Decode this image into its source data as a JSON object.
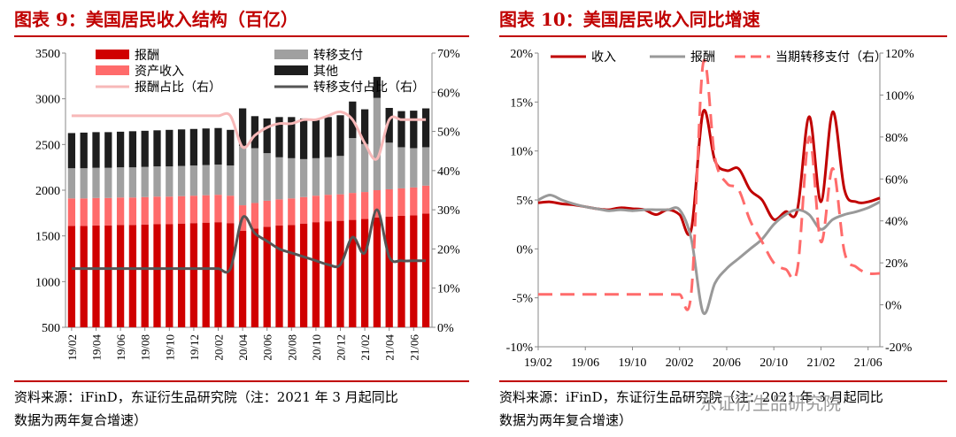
{
  "left": {
    "title": "图表 9：美国居民收入结构（百亿）",
    "note_lines": [
      "资料来源：iFinD，东证衍生品研究院（注：2021 年 3 月起同比",
      "数据为两年复合增速）"
    ],
    "chart_data": {
      "type": "bar",
      "stacked": true,
      "categories": [
        "19/02",
        "19/03",
        "19/04",
        "19/05",
        "19/06",
        "19/07",
        "19/08",
        "19/09",
        "19/10",
        "19/11",
        "19/12",
        "20/01",
        "20/02",
        "20/03",
        "20/04",
        "20/05",
        "20/06",
        "20/07",
        "20/08",
        "20/09",
        "20/10",
        "20/11",
        "20/12",
        "21/01",
        "21/02",
        "21/03",
        "21/04",
        "21/05",
        "21/06",
        "21/07"
      ],
      "xtick_labels": [
        "19/02",
        "19/04",
        "19/06",
        "19/08",
        "19/10",
        "19/12",
        "20/02",
        "20/04",
        "20/06",
        "20/08",
        "20/10",
        "20/12",
        "21/02",
        "21/04",
        "21/06"
      ],
      "ylim": [
        500,
        3500
      ],
      "yticks": [
        "500",
        "1000",
        "1500",
        "2000",
        "2500",
        "3000",
        "3500"
      ],
      "y2lim": [
        0,
        70
      ],
      "y2ticks": [
        "0%",
        "10%",
        "20%",
        "30%",
        "40%",
        "50%",
        "60%",
        "70%"
      ],
      "series": [
        {
          "name": "报酬",
          "color": "#d00000",
          "values": [
            1110,
            1110,
            1115,
            1115,
            1120,
            1120,
            1125,
            1130,
            1130,
            1135,
            1140,
            1145,
            1150,
            1140,
            1055,
            1080,
            1100,
            1115,
            1120,
            1135,
            1150,
            1160,
            1165,
            1175,
            1185,
            1200,
            1210,
            1220,
            1225,
            1245
          ]
        },
        {
          "name": "资产收入",
          "color": "#ff6b6b",
          "values": [
            300,
            300,
            300,
            300,
            300,
            300,
            300,
            300,
            300,
            300,
            300,
            300,
            300,
            300,
            280,
            280,
            285,
            285,
            290,
            290,
            290,
            290,
            290,
            295,
            295,
            300,
            300,
            300,
            305,
            305
          ]
        },
        {
          "name": "转移支付",
          "color": "#a0a0a0",
          "values": [
            330,
            330,
            330,
            330,
            330,
            330,
            330,
            330,
            330,
            330,
            330,
            330,
            330,
            330,
            650,
            600,
            520,
            460,
            440,
            415,
            410,
            410,
            420,
            600,
            525,
            1010,
            510,
            450,
            430,
            420
          ]
        },
        {
          "name": "其他",
          "color": "#1e1e1e",
          "values": [
            385,
            390,
            390,
            390,
            390,
            395,
            395,
            395,
            400,
            400,
            400,
            400,
            400,
            390,
            410,
            350,
            380,
            440,
            450,
            445,
            430,
            440,
            445,
            400,
            380,
            230,
            380,
            395,
            410,
            425
          ]
        }
      ],
      "lines": [
        {
          "name": "报酬占比（右）",
          "color": "#f7b8b8",
          "dash": false,
          "values": [
            54,
            54,
            54,
            54,
            54,
            54,
            54,
            54,
            54,
            54,
            54,
            54,
            54,
            54,
            46,
            49,
            51,
            52,
            52,
            53,
            53,
            54,
            55,
            53,
            47,
            43,
            53,
            53,
            53,
            53
          ]
        },
        {
          "name": "转移支付占比（右）",
          "color": "#555555",
          "dash": false,
          "values": [
            15,
            15,
            15,
            15,
            15,
            15,
            15,
            15,
            15,
            15,
            15,
            15,
            15,
            15,
            28,
            24,
            22,
            20,
            19,
            18,
            17,
            16,
            16,
            23,
            19,
            30,
            18,
            17,
            17,
            17
          ]
        }
      ]
    }
  },
  "right": {
    "title": "图表 10：美国居民收入同比增速",
    "note_lines": [
      "资料来源：iFinD，东证衍生品研究院（注：2021 年 3 月起同比",
      "数据为两年复合增速）"
    ],
    "watermark": "东证衍生品研究院",
    "chart_data": {
      "type": "line",
      "x": [
        "19/02",
        "19/03",
        "19/04",
        "19/05",
        "19/06",
        "19/07",
        "19/08",
        "19/09",
        "19/10",
        "19/11",
        "19/12",
        "20/01",
        "20/02",
        "20/03",
        "20/04",
        "20/05",
        "20/06",
        "20/07",
        "20/08",
        "20/09",
        "20/10",
        "20/11",
        "20/12",
        "21/01",
        "21/02",
        "21/03",
        "21/04",
        "21/05",
        "21/06",
        "21/07"
      ],
      "xtick_labels": [
        "19/02",
        "19/06",
        "19/10",
        "20/02",
        "20/06",
        "20/10",
        "21/02",
        "21/06"
      ],
      "ylim": [
        -10,
        20
      ],
      "yticks": [
        "-10%",
        "-5%",
        "0%",
        "5%",
        "10%",
        "15%",
        "20%"
      ],
      "y2lim": [
        -20,
        120
      ],
      "y2ticks": [
        "-20%",
        "0%",
        "20%",
        "40%",
        "60%",
        "80%",
        "100%",
        "120%"
      ],
      "series": [
        {
          "name": "收入",
          "axis": "left",
          "color": "#c00000",
          "dash": false,
          "values": [
            4.7,
            4.8,
            4.6,
            4.5,
            4.3,
            4.1,
            4.0,
            4.2,
            4.1,
            4.0,
            3.5,
            4.0,
            3.5,
            2.0,
            14.0,
            9.0,
            8.0,
            8.2,
            6.0,
            5.0,
            3.0,
            3.8,
            4.0,
            13.5,
            4.8,
            14.0,
            6.0,
            4.8,
            4.8,
            5.2
          ]
        },
        {
          "name": "报酬",
          "axis": "left",
          "color": "#999999",
          "dash": false,
          "values": [
            5.0,
            5.5,
            5.0,
            4.6,
            4.3,
            4.1,
            3.9,
            4.0,
            3.9,
            4.0,
            4.0,
            4.0,
            4.0,
            1.0,
            -6.5,
            -3.5,
            -2.0,
            -1.0,
            0.0,
            1.0,
            2.5,
            3.5,
            4.0,
            3.5,
            2.0,
            3.0,
            3.5,
            3.8,
            4.2,
            4.8
          ]
        },
        {
          "name": "当期转移支付（右）",
          "axis": "right",
          "color": "#ff6b6b",
          "dash": true,
          "values": [
            5.0,
            5.0,
            5.0,
            5.0,
            5.0,
            5.0,
            5.0,
            5.0,
            5.0,
            5.0,
            5.0,
            5.0,
            5.0,
            6.0,
            115.0,
            70.0,
            58.0,
            55.0,
            40.0,
            30.0,
            20.0,
            17.0,
            17.0,
            80.0,
            30.0,
            65.0,
            25.0,
            18.0,
            15.0,
            15.0
          ]
        }
      ]
    }
  }
}
